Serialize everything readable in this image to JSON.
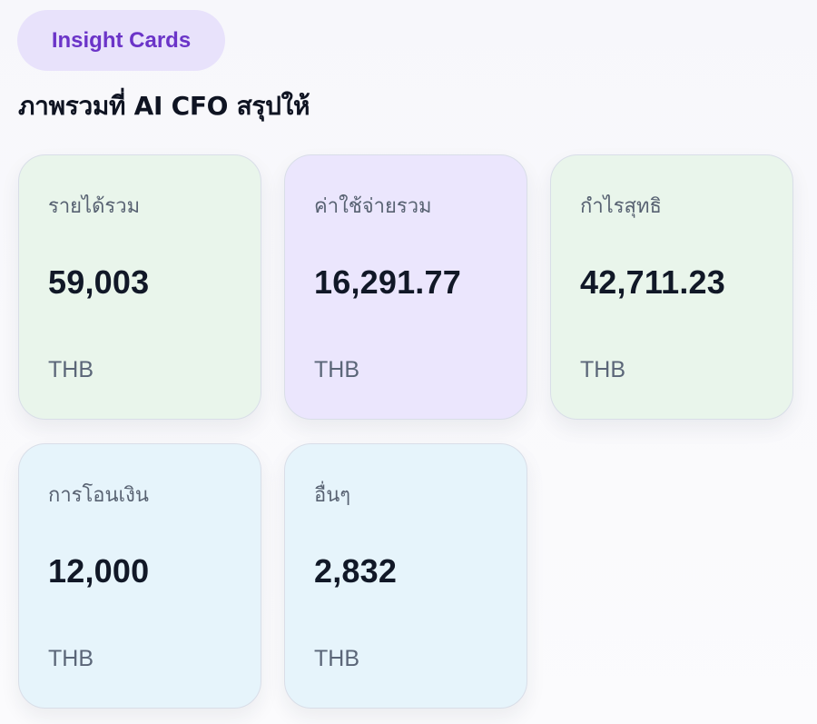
{
  "badge": {
    "label": "Insight Cards"
  },
  "section": {
    "title": "ภาพรวมที่ AI CFO สรุปให้"
  },
  "colors": {
    "badge_bg": "#e8e2fb",
    "badge_text": "#6b34c8",
    "green_card": "#e9f5eb",
    "purple_card": "#ebe6fd",
    "blue_card": "#e6f4fb"
  },
  "cards": [
    {
      "label": "รายได้รวม",
      "value": "59,003",
      "unit": "THB",
      "tone": "green"
    },
    {
      "label": "ค่าใช้จ่ายรวม",
      "value": "16,291.77",
      "unit": "THB",
      "tone": "purple"
    },
    {
      "label": "กำไรสุทธิ",
      "value": "42,711.23",
      "unit": "THB",
      "tone": "green"
    },
    {
      "label": "การโอนเงิน",
      "value": "12,000",
      "unit": "THB",
      "tone": "blue"
    },
    {
      "label": "อื่นๆ",
      "value": "2,832",
      "unit": "THB",
      "tone": "blue"
    }
  ]
}
